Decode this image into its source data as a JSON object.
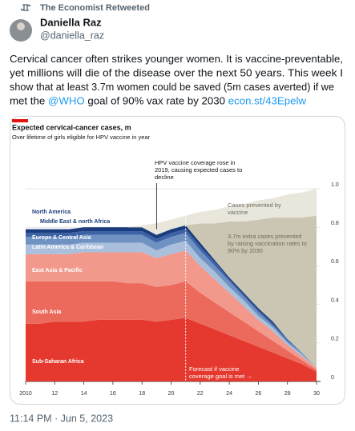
{
  "retweet": "The Economist Retweeted",
  "author": {
    "name": "Daniella Raz",
    "handle": "@daniella_raz"
  },
  "body_lines": [
    [
      {
        "text": "Cervical cancer often strikes younger women. It is vaccine-preventable,"
      }
    ],
    [
      {
        "text": "yet millions will die of the disease over the next 50 years. This week I"
      }
    ],
    [
      {
        "text": "show that at least 3.7m women could be saved (5m cases averted) if we"
      }
    ],
    [
      {
        "text": "met the "
      },
      {
        "text": "@WHO",
        "link": true
      },
      {
        "text": " goal of 90% vax rate by 2030 "
      },
      {
        "text": "econ.st/43Epelw",
        "link": true
      }
    ]
  ],
  "timestamp": "11:14 PM · Jun 5, 2023",
  "chart_data": {
    "type": "stacked_area",
    "title": "Expected cervical-cancer cases, m",
    "subtitle": "Over lifetime of girls eligible for HPV vaccine in year",
    "x": [
      2010,
      2011,
      2012,
      2013,
      2014,
      2015,
      2016,
      2017,
      2018,
      2019,
      2020,
      2021,
      2022,
      2023,
      2024,
      2025,
      2026,
      2027,
      2028,
      2029,
      2030
    ],
    "series": [
      {
        "name": "Sub-Saharan Africa",
        "color": "#e5392f",
        "values": [
          0.3,
          0.3,
          0.31,
          0.31,
          0.31,
          0.32,
          0.32,
          0.32,
          0.32,
          0.31,
          0.32,
          0.33,
          0.3,
          0.27,
          0.24,
          0.21,
          0.18,
          0.15,
          0.12,
          0.09,
          0.05
        ]
      },
      {
        "name": "South Asia",
        "color": "#ec6a5c",
        "values": [
          0.22,
          0.22,
          0.21,
          0.21,
          0.21,
          0.2,
          0.2,
          0.19,
          0.19,
          0.18,
          0.18,
          0.19,
          0.16,
          0.14,
          0.12,
          0.1,
          0.08,
          0.06,
          0.04,
          0.02,
          0.01
        ]
      },
      {
        "name": "East Asia & Pacific",
        "color": "#f2998c",
        "values": [
          0.14,
          0.14,
          0.14,
          0.14,
          0.15,
          0.15,
          0.15,
          0.16,
          0.16,
          0.15,
          0.16,
          0.16,
          0.14,
          0.12,
          0.1,
          0.08,
          0.06,
          0.05,
          0.03,
          0.02,
          0.01
        ]
      },
      {
        "name": "Latin America & Caribbean",
        "color": "#a9bfdc",
        "values": [
          0.05,
          0.05,
          0.05,
          0.05,
          0.05,
          0.05,
          0.05,
          0.05,
          0.05,
          0.04,
          0.05,
          0.05,
          0.04,
          0.04,
          0.03,
          0.03,
          0.02,
          0.02,
          0.01,
          0.01,
          0
        ]
      },
      {
        "name": "Europe & Central Asia",
        "color": "#6f92c3",
        "values": [
          0.04,
          0.04,
          0.04,
          0.04,
          0.04,
          0.04,
          0.04,
          0.04,
          0.04,
          0.04,
          0.04,
          0.04,
          0.04,
          0.03,
          0.03,
          0.02,
          0.02,
          0.01,
          0.01,
          0.01,
          0
        ]
      },
      {
        "name": "Middle East & north Africa",
        "color": "#3d63a6",
        "values": [
          0.02,
          0.02,
          0.02,
          0.02,
          0.02,
          0.02,
          0.02,
          0.02,
          0.02,
          0.02,
          0.02,
          0.02,
          0.02,
          0.02,
          0.01,
          0.01,
          0.01,
          0.01,
          0.01,
          0,
          0
        ]
      },
      {
        "name": "North America",
        "color": "#1c3d7d",
        "values": [
          0.02,
          0.02,
          0.02,
          0.02,
          0.02,
          0.02,
          0.02,
          0.02,
          0.02,
          0.02,
          0.02,
          0.02,
          0.02,
          0.01,
          0.01,
          0.01,
          0.01,
          0.01,
          0,
          0,
          0
        ]
      },
      {
        "name": "3.7m extra cases prevented by raising vaccination rates to 90% by 2030",
        "color": "#cbc6b3",
        "values": [
          null,
          null,
          null,
          null,
          null,
          null,
          null,
          null,
          null,
          null,
          null,
          0,
          0.1,
          0.19,
          0.29,
          0.37,
          0.46,
          0.54,
          0.63,
          0.7,
          0.79
        ]
      },
      {
        "name": "Cases prevented by vaccine",
        "color": "#e9e6dc",
        "values": [
          null,
          null,
          null,
          null,
          null,
          null,
          null,
          0,
          0.01,
          0.06,
          0.05,
          0.05,
          0.06,
          0.07,
          0.08,
          0.09,
          0.1,
          0.1,
          0.12,
          0.13,
          0.14
        ]
      }
    ],
    "xlim": [
      2010,
      2030
    ],
    "xticks": [
      2010,
      {
        "value": 2012,
        "label": "12"
      },
      {
        "value": 2014,
        "label": "14"
      },
      {
        "value": 2016,
        "label": "16"
      },
      {
        "value": 2018,
        "label": "18"
      },
      {
        "value": 2020,
        "label": "20"
      },
      {
        "value": 2022,
        "label": "22"
      },
      {
        "value": 2024,
        "label": "24"
      },
      {
        "value": 2026,
        "label": "26"
      },
      {
        "value": 2028,
        "label": "28"
      },
      {
        "value": 2030,
        "label": "30"
      }
    ],
    "ylim": [
      0,
      1
    ],
    "yticks": [
      0,
      0.2,
      0.4,
      0.6,
      0.8,
      {
        "value": 1,
        "label": "1.0"
      }
    ],
    "grid": true,
    "forecast_x": 2021,
    "annotations": [
      {
        "text": "HPV vaccine coverage rose in 2019, causing expected cases to decline",
        "x": 2019
      },
      {
        "text": "Forecast if vaccine coverage goal is met →"
      }
    ]
  }
}
